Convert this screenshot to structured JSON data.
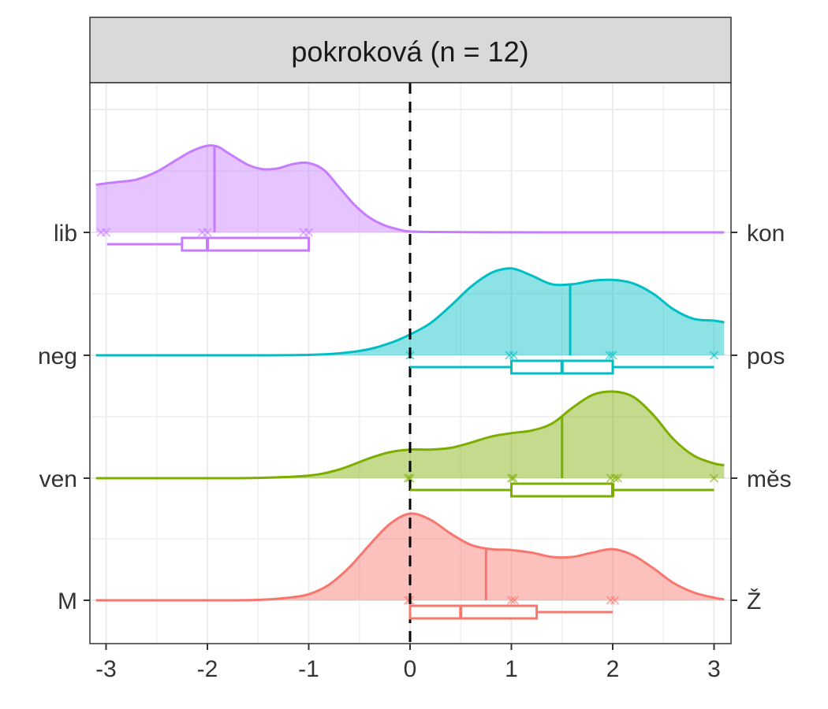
{
  "chart_data": {
    "type": "ridgeline",
    "title": "",
    "facet_label": "pokroková (n = 12)",
    "xlabel": "",
    "ylabel": "",
    "xlim": [
      -3,
      3
    ],
    "x_ticks": [
      -3,
      -2,
      -1,
      0,
      1,
      2,
      3
    ],
    "x_tick_labels": [
      "-3",
      "-2",
      "-1",
      "0",
      "1",
      "2",
      "3"
    ],
    "reference_line_x": 0,
    "grid": true,
    "legend": "none",
    "series": [
      {
        "left_label": "lib",
        "right_label": "kon",
        "color": "#C77CFF",
        "density_x": [
          -3.1,
          -2.9,
          -2.7,
          -2.5,
          -2.3,
          -2.15,
          -2.0,
          -1.9,
          -1.8,
          -1.6,
          -1.45,
          -1.3,
          -1.15,
          -1.0,
          -0.85,
          -0.7,
          -0.55,
          -0.4,
          -0.25,
          -0.1,
          0.0,
          0.3,
          0.6,
          1.0,
          1.5,
          2.0,
          2.5,
          3.1
        ],
        "density_y": [
          0.55,
          0.58,
          0.61,
          0.7,
          0.84,
          0.94,
          1.0,
          0.99,
          0.92,
          0.78,
          0.73,
          0.74,
          0.79,
          0.8,
          0.72,
          0.52,
          0.32,
          0.17,
          0.08,
          0.03,
          0.01,
          0.004,
          0.002,
          0.001,
          0.0,
          0.0,
          0.0,
          0.0
        ],
        "median": -1.93,
        "points": [
          -3.05,
          -3.0,
          -2.05,
          -2.0,
          -1.05,
          -1.0
        ],
        "box": {
          "whisker_low": -2.99,
          "q1": -2.25,
          "median": -2.0,
          "q3": -1.0,
          "whisker_high": -1.0
        }
      },
      {
        "left_label": "neg",
        "right_label": "pos",
        "color": "#00BFC4",
        "density_x": [
          -3.1,
          -2.0,
          -1.0,
          -0.5,
          -0.2,
          0.0,
          0.2,
          0.4,
          0.6,
          0.8,
          0.95,
          1.05,
          1.2,
          1.4,
          1.6,
          1.8,
          2.0,
          2.2,
          2.4,
          2.6,
          2.8,
          3.0,
          3.1
        ],
        "density_y": [
          0.0,
          0.0,
          0.005,
          0.05,
          0.14,
          0.24,
          0.37,
          0.57,
          0.79,
          0.95,
          1.0,
          0.99,
          0.92,
          0.82,
          0.82,
          0.86,
          0.87,
          0.83,
          0.71,
          0.53,
          0.42,
          0.4,
          0.38
        ],
        "median": 1.58,
        "points": [
          0.0,
          0.98,
          1.02,
          1.97,
          2.0,
          3.0
        ],
        "box": {
          "whisker_low": 0.0,
          "q1": 1.0,
          "median": 1.5,
          "q3": 2.0,
          "whisker_high": 3.0
        }
      },
      {
        "left_label": "ven",
        "right_label": "měs",
        "color": "#7CAE00",
        "density_x": [
          -3.1,
          -2.0,
          -1.5,
          -1.0,
          -0.7,
          -0.4,
          -0.2,
          0.0,
          0.2,
          0.4,
          0.6,
          0.8,
          1.0,
          1.2,
          1.4,
          1.6,
          1.8,
          2.0,
          2.2,
          2.4,
          2.6,
          2.8,
          3.0,
          3.1
        ],
        "density_y": [
          0.0,
          0.0,
          0.003,
          0.03,
          0.1,
          0.23,
          0.3,
          0.33,
          0.33,
          0.35,
          0.41,
          0.48,
          0.52,
          0.55,
          0.63,
          0.81,
          0.96,
          1.0,
          0.94,
          0.73,
          0.45,
          0.26,
          0.17,
          0.15
        ],
        "median": 1.5,
        "points": [
          -0.02,
          0.0,
          1.0,
          1.02,
          1.98,
          2.02,
          2.05,
          3.0
        ],
        "box": {
          "whisker_low": 0.0,
          "q1": 1.0,
          "median": 2.0,
          "q3": 2.0,
          "whisker_high": 3.0
        }
      },
      {
        "left_label": "M",
        "right_label": "Ž",
        "color": "#F8766D",
        "density_x": [
          -3.1,
          -2.0,
          -1.5,
          -1.2,
          -1.0,
          -0.8,
          -0.6,
          -0.4,
          -0.2,
          0.0,
          0.2,
          0.4,
          0.6,
          0.8,
          1.0,
          1.2,
          1.4,
          1.6,
          1.8,
          2.0,
          2.2,
          2.4,
          2.6,
          2.8,
          3.0,
          3.1
        ],
        "density_y": [
          0.0,
          0.0,
          0.005,
          0.03,
          0.07,
          0.18,
          0.38,
          0.64,
          0.88,
          1.0,
          0.93,
          0.77,
          0.64,
          0.59,
          0.58,
          0.55,
          0.5,
          0.5,
          0.55,
          0.59,
          0.52,
          0.37,
          0.2,
          0.09,
          0.03,
          0.01
        ],
        "median": 0.75,
        "points": [
          -0.02,
          0.0,
          1.0,
          1.03,
          1.98,
          2.02
        ],
        "box": {
          "whisker_low": 0.0,
          "q1": 0.0,
          "median": 0.5,
          "q3": 1.25,
          "whisker_high": 2.0
        }
      }
    ]
  }
}
